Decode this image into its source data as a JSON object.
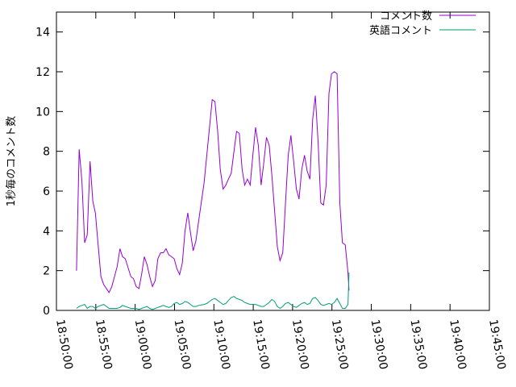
{
  "chart_data": {
    "type": "line",
    "title": "",
    "xlabel": "",
    "ylabel": "1秒毎のコメント数",
    "xlim": [
      "18:50:00",
      "19:45:00"
    ],
    "ylim": [
      0,
      15
    ],
    "x_ticks": [
      "18:50:00",
      "18:55:00",
      "19:00:00",
      "19:05:00",
      "19:10:00",
      "19:15:00",
      "19:20:00",
      "19:25:00",
      "19:30:00",
      "19:35:00",
      "19:40:00",
      "19:45:00"
    ],
    "y_ticks": [
      "0",
      "2",
      "4",
      "6",
      "8",
      "10",
      "12",
      "14"
    ],
    "grid": false,
    "legend_position": "top-right",
    "series": [
      {
        "name": "コメント数",
        "color": "#9400d3",
        "points": [
          [
            "18:52:33",
            2.0
          ],
          [
            "18:52:53",
            8.1
          ],
          [
            "18:53:14",
            6.5
          ],
          [
            "18:53:35",
            3.4
          ],
          [
            "18:53:55",
            3.8
          ],
          [
            "18:54:16",
            7.5
          ],
          [
            "18:54:37",
            5.5
          ],
          [
            "18:54:57",
            4.9
          ],
          [
            "18:55:18",
            3.3
          ],
          [
            "18:55:39",
            1.7
          ],
          [
            "18:56:00",
            1.3
          ],
          [
            "18:56:41",
            0.9
          ],
          [
            "18:57:02",
            1.2
          ],
          [
            "18:57:43",
            2.2
          ],
          [
            "18:58:04",
            3.1
          ],
          [
            "18:58:24",
            2.7
          ],
          [
            "18:58:45",
            2.6
          ],
          [
            "18:59:27",
            1.7
          ],
          [
            "18:59:47",
            1.6
          ],
          [
            "19:00:08",
            1.2
          ],
          [
            "19:00:29",
            1.1
          ],
          [
            "19:00:49",
            1.8
          ],
          [
            "19:01:10",
            2.7
          ],
          [
            "19:01:31",
            2.3
          ],
          [
            "19:01:51",
            1.7
          ],
          [
            "19:02:12",
            1.2
          ],
          [
            "19:02:33",
            1.5
          ],
          [
            "19:02:53",
            2.6
          ],
          [
            "19:03:14",
            2.9
          ],
          [
            "19:03:35",
            2.9
          ],
          [
            "19:03:55",
            3.1
          ],
          [
            "19:04:16",
            2.8
          ],
          [
            "19:04:37",
            2.7
          ],
          [
            "19:04:57",
            2.6
          ],
          [
            "19:05:18",
            2.1
          ],
          [
            "19:05:39",
            1.8
          ],
          [
            "19:06:00",
            2.4
          ],
          [
            "19:06:20",
            4.0
          ],
          [
            "19:06:41",
            4.9
          ],
          [
            "19:07:02",
            3.9
          ],
          [
            "19:07:22",
            3.0
          ],
          [
            "19:07:43",
            3.5
          ],
          [
            "19:08:04",
            4.5
          ],
          [
            "19:08:45",
            6.4
          ],
          [
            "19:09:06",
            7.8
          ],
          [
            "19:09:47",
            10.6
          ],
          [
            "19:10:08",
            10.5
          ],
          [
            "19:10:29",
            9.0
          ],
          [
            "19:10:49",
            7.1
          ],
          [
            "19:11:10",
            6.1
          ],
          [
            "19:11:31",
            6.3
          ],
          [
            "19:11:51",
            6.6
          ],
          [
            "19:12:12",
            6.9
          ],
          [
            "19:12:33",
            8.0
          ],
          [
            "19:12:53",
            9.0
          ],
          [
            "19:13:14",
            8.9
          ],
          [
            "19:13:35",
            7.1
          ],
          [
            "19:13:55",
            6.3
          ],
          [
            "19:14:16",
            6.6
          ],
          [
            "19:14:37",
            6.3
          ],
          [
            "19:14:57",
            7.8
          ],
          [
            "19:15:18",
            9.2
          ],
          [
            "19:15:39",
            8.3
          ],
          [
            "19:16:00",
            6.3
          ],
          [
            "19:16:20",
            7.4
          ],
          [
            "19:16:41",
            8.7
          ],
          [
            "19:17:02",
            8.3
          ],
          [
            "19:17:22",
            6.8
          ],
          [
            "19:17:43",
            5.0
          ],
          [
            "19:18:04",
            3.2
          ],
          [
            "19:18:24",
            2.5
          ],
          [
            "19:18:45",
            2.9
          ],
          [
            "19:19:06",
            5.4
          ],
          [
            "19:19:27",
            7.8
          ],
          [
            "19:19:47",
            8.8
          ],
          [
            "19:20:08",
            7.5
          ],
          [
            "19:20:29",
            6.1
          ],
          [
            "19:20:49",
            5.6
          ],
          [
            "19:21:10",
            7.1
          ],
          [
            "19:21:31",
            7.8
          ],
          [
            "19:21:51",
            7.0
          ],
          [
            "19:22:12",
            6.6
          ],
          [
            "19:22:33",
            9.6
          ],
          [
            "19:22:53",
            10.8
          ],
          [
            "19:23:14",
            8.5
          ],
          [
            "19:23:35",
            5.4
          ],
          [
            "19:23:55",
            5.3
          ],
          [
            "19:24:16",
            6.3
          ],
          [
            "19:24:37",
            10.9
          ],
          [
            "19:24:57",
            11.9
          ],
          [
            "19:25:18",
            12.0
          ],
          [
            "19:25:39",
            11.9
          ],
          [
            "19:26:00",
            5.4
          ],
          [
            "19:26:20",
            3.4
          ],
          [
            "19:26:41",
            3.3
          ],
          [
            "19:27:02",
            1.9
          ],
          [
            "19:27:10",
            1.0
          ]
        ]
      },
      {
        "name": "英語コメント",
        "color": "#009e73",
        "points": [
          [
            "18:52:33",
            0.1
          ],
          [
            "18:52:53",
            0.2
          ],
          [
            "18:53:14",
            0.25
          ],
          [
            "18:53:35",
            0.3
          ],
          [
            "18:53:55",
            0.1
          ],
          [
            "18:54:16",
            0.2
          ],
          [
            "18:54:37",
            0.2
          ],
          [
            "18:54:57",
            0.1
          ],
          [
            "18:55:18",
            0.2
          ],
          [
            "18:55:39",
            0.25
          ],
          [
            "18:56:00",
            0.3
          ],
          [
            "18:56:41",
            0.1
          ],
          [
            "18:57:02",
            0.1
          ],
          [
            "18:57:43",
            0.1
          ],
          [
            "18:58:04",
            0.15
          ],
          [
            "18:58:24",
            0.25
          ],
          [
            "18:58:45",
            0.2
          ],
          [
            "18:59:27",
            0.1
          ],
          [
            "18:59:47",
            0.1
          ],
          [
            "19:00:08",
            0.1
          ],
          [
            "19:00:29",
            0.05
          ],
          [
            "19:00:49",
            0.1
          ],
          [
            "19:01:10",
            0.15
          ],
          [
            "19:01:31",
            0.2
          ],
          [
            "19:01:51",
            0.1
          ],
          [
            "19:02:12",
            0.05
          ],
          [
            "19:02:33",
            0.1
          ],
          [
            "19:02:53",
            0.15
          ],
          [
            "19:03:14",
            0.2
          ],
          [
            "19:03:35",
            0.25
          ],
          [
            "19:03:55",
            0.2
          ],
          [
            "19:04:16",
            0.15
          ],
          [
            "19:04:37",
            0.2
          ],
          [
            "19:04:57",
            0.35
          ],
          [
            "19:05:18",
            0.4
          ],
          [
            "19:05:39",
            0.3
          ],
          [
            "19:06:00",
            0.35
          ],
          [
            "19:06:20",
            0.45
          ],
          [
            "19:06:41",
            0.4
          ],
          [
            "19:07:02",
            0.3
          ],
          [
            "19:07:22",
            0.2
          ],
          [
            "19:07:43",
            0.2
          ],
          [
            "19:08:04",
            0.25
          ],
          [
            "19:08:45",
            0.3
          ],
          [
            "19:09:06",
            0.35
          ],
          [
            "19:09:47",
            0.55
          ],
          [
            "19:10:08",
            0.6
          ],
          [
            "19:10:29",
            0.5
          ],
          [
            "19:10:49",
            0.4
          ],
          [
            "19:11:10",
            0.3
          ],
          [
            "19:11:31",
            0.35
          ],
          [
            "19:11:51",
            0.5
          ],
          [
            "19:12:12",
            0.65
          ],
          [
            "19:12:33",
            0.7
          ],
          [
            "19:12:53",
            0.6
          ],
          [
            "19:13:14",
            0.55
          ],
          [
            "19:13:35",
            0.5
          ],
          [
            "19:13:55",
            0.4
          ],
          [
            "19:14:16",
            0.35
          ],
          [
            "19:14:37",
            0.3
          ],
          [
            "19:14:57",
            0.3
          ],
          [
            "19:15:18",
            0.3
          ],
          [
            "19:15:39",
            0.25
          ],
          [
            "19:16:00",
            0.2
          ],
          [
            "19:16:20",
            0.2
          ],
          [
            "19:16:41",
            0.3
          ],
          [
            "19:17:02",
            0.4
          ],
          [
            "19:17:22",
            0.55
          ],
          [
            "19:17:43",
            0.45
          ],
          [
            "19:18:04",
            0.2
          ],
          [
            "19:18:24",
            0.1
          ],
          [
            "19:18:45",
            0.2
          ],
          [
            "19:19:06",
            0.35
          ],
          [
            "19:19:27",
            0.4
          ],
          [
            "19:19:47",
            0.3
          ],
          [
            "19:20:08",
            0.2
          ],
          [
            "19:20:29",
            0.15
          ],
          [
            "19:20:49",
            0.25
          ],
          [
            "19:21:10",
            0.35
          ],
          [
            "19:21:31",
            0.4
          ],
          [
            "19:21:51",
            0.3
          ],
          [
            "19:22:12",
            0.35
          ],
          [
            "19:22:33",
            0.6
          ],
          [
            "19:22:53",
            0.65
          ],
          [
            "19:23:14",
            0.5
          ],
          [
            "19:23:35",
            0.3
          ],
          [
            "19:23:55",
            0.25
          ],
          [
            "19:24:16",
            0.3
          ],
          [
            "19:24:37",
            0.35
          ],
          [
            "19:24:57",
            0.3
          ],
          [
            "19:25:18",
            0.4
          ],
          [
            "19:25:39",
            0.6
          ],
          [
            "19:26:00",
            0.35
          ],
          [
            "19:26:20",
            0.1
          ],
          [
            "19:26:41",
            0.1
          ],
          [
            "19:27:02",
            0.3
          ],
          [
            "19:27:10",
            1.9
          ]
        ]
      }
    ]
  }
}
